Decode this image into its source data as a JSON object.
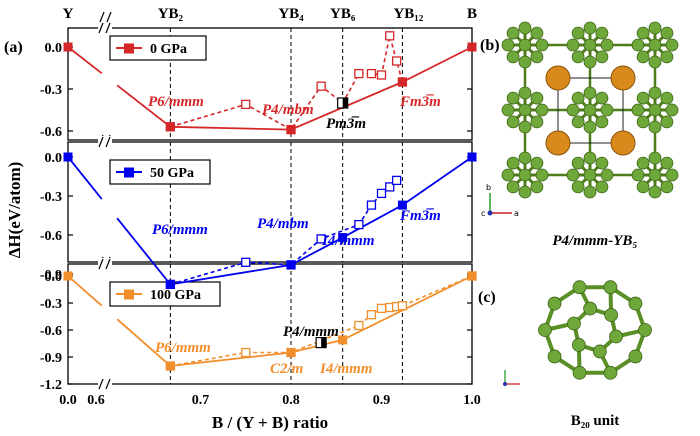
{
  "chart_data": [
    {
      "type": "line",
      "panel_label": "(a)",
      "ylim": [
        -0.7,
        0.1
      ],
      "yticks": [
        "0.0",
        "-0.3",
        "-0.6"
      ],
      "legend": "0 GPa",
      "color": "#d62728",
      "stable_series": {
        "x": [
          0.0,
          0.6667,
          0.8,
          0.9231,
          1.0
        ],
        "y": [
          0.0,
          -0.57,
          -0.59,
          -0.25,
          0.0
        ]
      },
      "metastable_series": {
        "x": [
          0.6667,
          0.75,
          0.8,
          0.8333,
          0.8571,
          0.875,
          0.8889,
          0.9,
          0.9091,
          0.9167,
          0.9231
        ],
        "y": [
          -0.57,
          -0.41,
          -0.59,
          -0.28,
          -0.4,
          -0.19,
          -0.19,
          -0.2,
          0.08,
          -0.1,
          -0.25
        ]
      },
      "marker": {
        "x": 0.8571,
        "y": -0.4
      },
      "annotations": [
        "P6/mmm",
        "P4/mbm",
        "Pm3̅m",
        "Fm3̅m"
      ]
    },
    {
      "type": "line",
      "panel_label": "",
      "ylim": [
        -1.05,
        0.1
      ],
      "yticks": [
        "0.0",
        "-0.3",
        "-0.6",
        "-0.9"
      ],
      "legend": "50 GPa",
      "color": "#0000ee",
      "stable_series": {
        "x": [
          0.0,
          0.6667,
          0.8,
          0.8571,
          0.9231,
          1.0
        ],
        "y": [
          0.0,
          -0.98,
          -0.83,
          -0.62,
          -0.37,
          0.0
        ]
      },
      "metastable_series": {
        "x": [
          0.6667,
          0.75,
          0.8,
          0.8333,
          0.875,
          0.8889,
          0.9,
          0.9091,
          0.9167
        ],
        "y": [
          -0.98,
          -0.81,
          -0.83,
          -0.63,
          -0.52,
          -0.37,
          -0.28,
          -0.23,
          -0.18
        ]
      },
      "annotations": [
        "P6/mmm",
        "P4/mbm",
        "I4/mmm",
        "Fm3̅m"
      ]
    },
    {
      "type": "line",
      "panel_label": "(c)",
      "ylim": [
        -1.2,
        0.1
      ],
      "yticks": [
        "0.0",
        "-0.3",
        "-0.6",
        "-0.9",
        "-1.2"
      ],
      "legend": "100 GPa",
      "color": "#f28e2b",
      "stable_series": {
        "x": [
          0.0,
          0.6667,
          0.8,
          0.8571,
          1.0
        ],
        "y": [
          0.0,
          -1.0,
          -0.85,
          -0.71,
          0.0
        ]
      },
      "metastable_series": {
        "x": [
          0.6667,
          0.75,
          0.8,
          0.875,
          0.8889,
          0.9,
          0.9091,
          0.9167,
          0.9231,
          1.0
        ],
        "y": [
          -1.0,
          -0.85,
          -0.85,
          -0.55,
          -0.43,
          -0.36,
          -0.35,
          -0.34,
          -0.33,
          0.0
        ]
      },
      "marker": {
        "x": 0.8333,
        "y": -0.74
      },
      "annotations": [
        "P6/mmm",
        "P4/mmm",
        "C2/m",
        "I4/mmm"
      ]
    }
  ],
  "axes": {
    "xlabel": "B / (Y + B) ratio",
    "ylabel": "ΔH(eV/atom)",
    "xticks": [
      "0.0",
      "0.6",
      "0.7",
      "0.8",
      "0.9",
      "1.0"
    ],
    "top_labels": [
      "Y",
      "YB₂",
      "YB₄",
      "YB₆",
      "YB₁₂",
      "B"
    ]
  },
  "right_panels": {
    "label_b": "(b)",
    "caption_b": "P4/mmm-YB₅",
    "label_c": "(c)",
    "caption_c": "B₂₀ unit",
    "axis_letters": [
      "b",
      "a",
      "c"
    ]
  }
}
